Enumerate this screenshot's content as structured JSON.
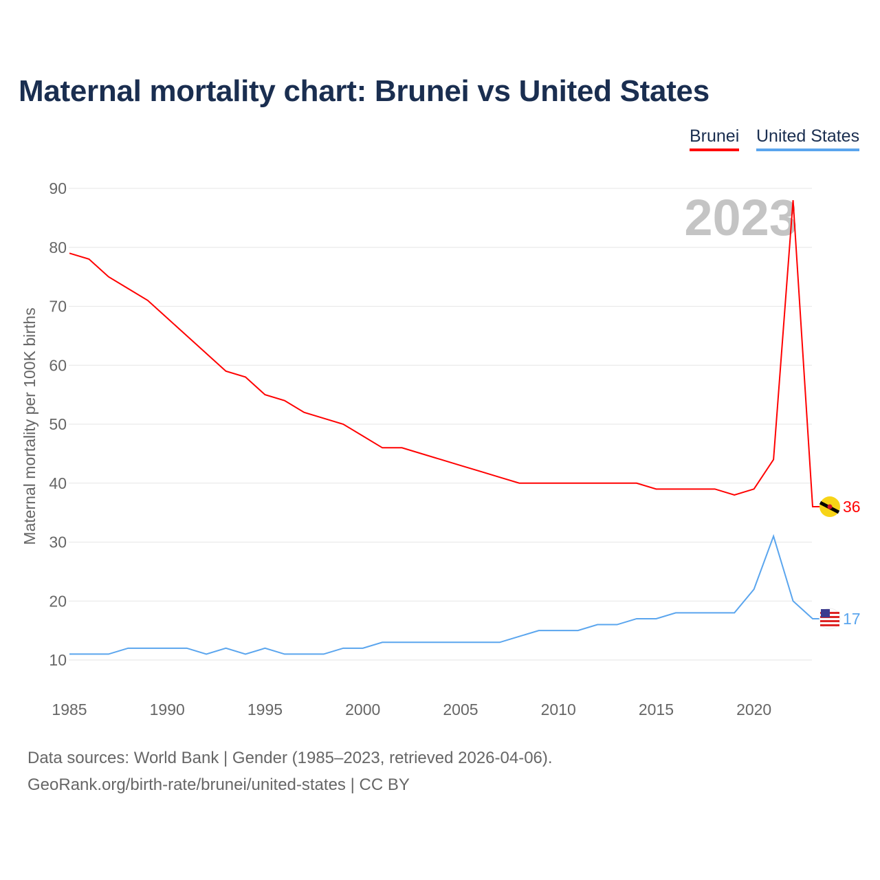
{
  "title": "Maternal mortality chart: Brunei vs United States",
  "legend": [
    {
      "label": "Brunei",
      "color": "#ff0000"
    },
    {
      "label": "United States",
      "color": "#5aa5ee"
    }
  ],
  "footer": {
    "line1": "Data sources: World Bank | Gender (1985–2023, retrieved 2026-04-06).",
    "line2": "GeoRank.org/birth-rate/brunei/united-states | CC BY"
  },
  "chart_data": {
    "type": "line",
    "title": "Maternal mortality chart: Brunei vs United States",
    "ylabel": "Maternal mortality per 100K births",
    "xlabel": "",
    "year_watermark": "2023",
    "x": [
      1985,
      1986,
      1987,
      1988,
      1989,
      1990,
      1991,
      1992,
      1993,
      1994,
      1995,
      1996,
      1997,
      1998,
      1999,
      2000,
      2001,
      2002,
      2003,
      2004,
      2005,
      2006,
      2007,
      2008,
      2009,
      2010,
      2011,
      2012,
      2013,
      2014,
      2015,
      2016,
      2017,
      2018,
      2019,
      2020,
      2021,
      2022,
      2023
    ],
    "xlim": [
      1985,
      2023
    ],
    "ylim": [
      5,
      90
    ],
    "xticks": [
      1985,
      1990,
      1995,
      2000,
      2005,
      2010,
      2015,
      2020
    ],
    "yticks": [
      10,
      20,
      30,
      40,
      50,
      60,
      70,
      80,
      90
    ],
    "grid": true,
    "legend_position": "top-right",
    "series": [
      {
        "name": "Brunei",
        "color": "#ff0000",
        "end_label": "36",
        "values": [
          79,
          78,
          75,
          73,
          71,
          68,
          65,
          62,
          59,
          58,
          55,
          54,
          52,
          51,
          50,
          48,
          46,
          46,
          45,
          44,
          43,
          42,
          41,
          40,
          40,
          40,
          40,
          40,
          40,
          40,
          39,
          39,
          39,
          39,
          38,
          39,
          44,
          88,
          36
        ]
      },
      {
        "name": "United States",
        "color": "#5aa5ee",
        "end_label": "17",
        "values": [
          11,
          11,
          11,
          12,
          12,
          12,
          12,
          11,
          12,
          11,
          12,
          11,
          11,
          11,
          12,
          12,
          13,
          13,
          13,
          13,
          13,
          13,
          13,
          14,
          15,
          15,
          15,
          16,
          16,
          17,
          17,
          18,
          18,
          18,
          18,
          22,
          31,
          20,
          17
        ]
      }
    ]
  }
}
